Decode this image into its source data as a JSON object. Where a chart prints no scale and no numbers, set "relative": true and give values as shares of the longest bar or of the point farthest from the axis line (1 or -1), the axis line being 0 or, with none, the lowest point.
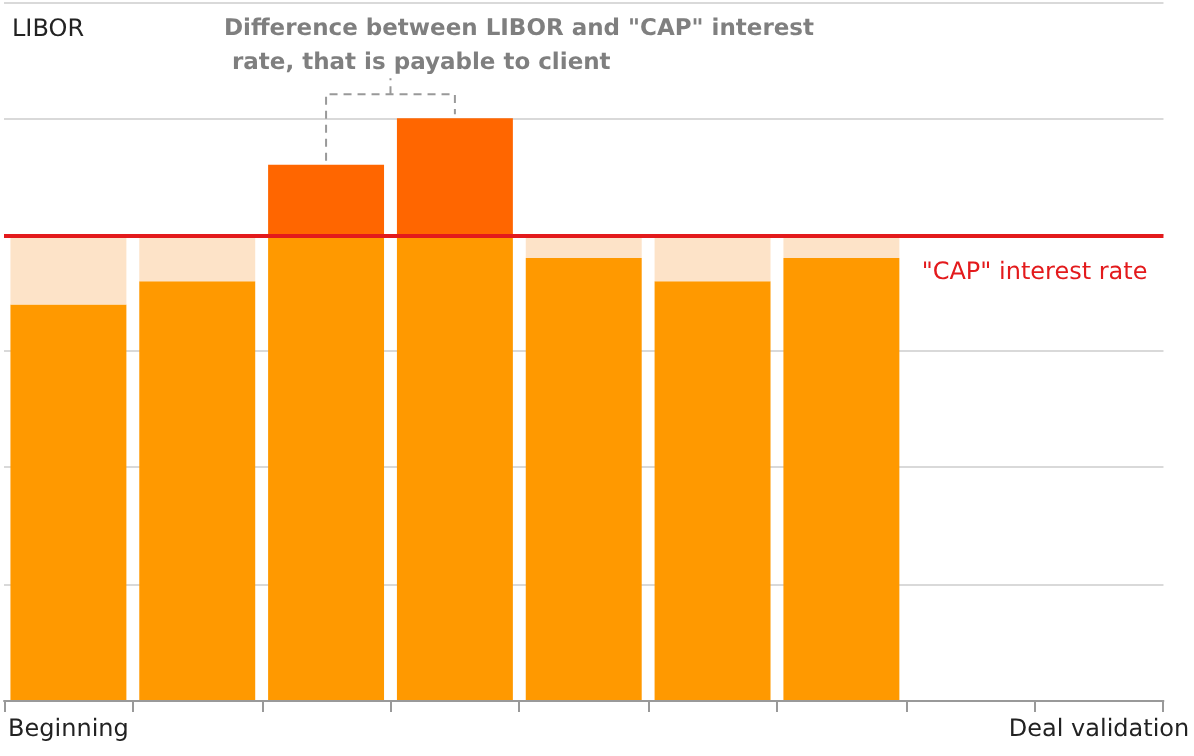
{
  "chart_data": {
    "type": "bar",
    "relative": true,
    "stacked": true,
    "ylabel": "LIBOR",
    "grid": "y",
    "categories": [
      "Beginning",
      null,
      null,
      null,
      null,
      null,
      null,
      null,
      "Deal validation"
    ],
    "series": [
      {
        "color": "#ff9900",
        "values": [
          0.68,
          0.72,
          0.8,
          0.8,
          0.76,
          0.72,
          0.76,
          null,
          null
        ]
      },
      {
        "color": "#ff6600",
        "values": [
          null,
          null,
          0.12,
          0.2,
          null,
          null,
          null,
          null,
          null
        ]
      },
      {
        "color": "#fde3c8",
        "values": [
          0.12,
          0.08,
          null,
          null,
          0.04,
          0.08,
          0.04,
          null,
          null
        ]
      }
    ],
    "ref_lines": [
      {
        "axis": "y",
        "value": 0.8,
        "label": "\"CAP\" interest rate",
        "color": "#e31a1c"
      }
    ],
    "annotations": [
      "Difference between LIBOR and \"CAP\" interest rate, that is payable to client"
    ]
  }
}
